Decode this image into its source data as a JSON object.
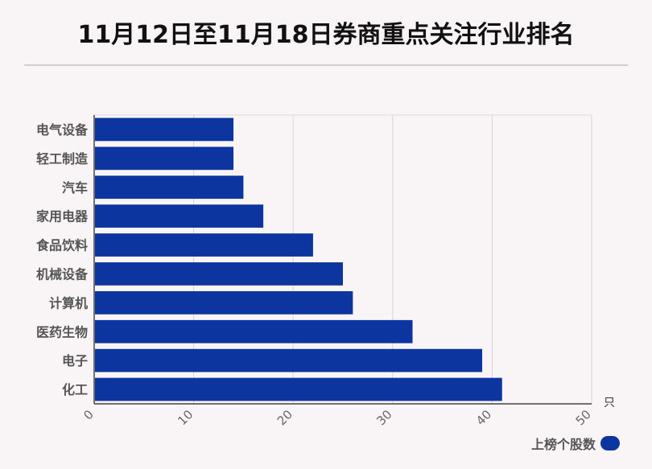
{
  "title": "11月12日至11月18日券商重点关注行业排名",
  "legend": {
    "label": "上榜个股数"
  },
  "colors": {
    "bar": "#0d35a0",
    "grid": "#d4d4d4",
    "axis": "#555555"
  },
  "chart_data": {
    "type": "bar",
    "orientation": "horizontal",
    "title": "11月12日至11月18日券商重点关注行业排名",
    "categories": [
      "电气设备",
      "轻工制造",
      "汽车",
      "家用电器",
      "食品饮料",
      "机械设备",
      "计算机",
      "医药生物",
      "电子",
      "化工"
    ],
    "series": [
      {
        "name": "上榜个股数",
        "values": [
          14,
          14,
          15,
          17,
          22,
          25,
          26,
          32,
          39,
          41
        ]
      }
    ],
    "xlim": [
      0,
      50
    ],
    "xticks": [
      0,
      10,
      20,
      30,
      40,
      50
    ],
    "xunit": "只",
    "grid": true,
    "legend_position": "bottom-right"
  }
}
